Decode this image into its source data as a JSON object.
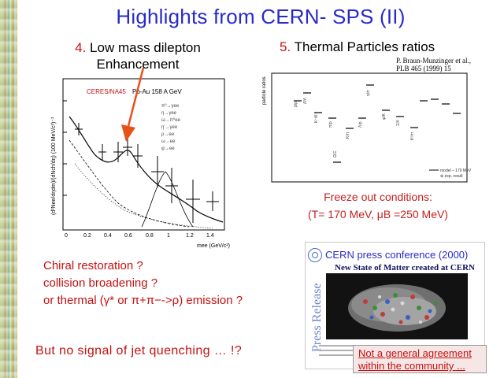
{
  "title": "Highlights from CERN- SPS (II)",
  "section4": {
    "num": "4.",
    "line1": "Low mass dilepton",
    "line2": "Enhancement"
  },
  "section5": {
    "num": "5.",
    "text": "Thermal Particles ratios"
  },
  "reference": {
    "line1": "P. Braun-Munzinger et al.,",
    "line2": "PLB 465 (1999) 15"
  },
  "dilepton_plot": {
    "experiment": "CERES/NA45",
    "system": "Pb-Au 158 A GeV",
    "ylabel": "(d²Nee/dηdm)/(dNch/dη) (100 MeV/c²)⁻¹",
    "xlabel": "mee (GeV/c²)",
    "xticks": [
      "0",
      "0.2",
      "0.4",
      "0.6",
      "0.8",
      "1",
      "1.2",
      "1.4"
    ]
  },
  "freeze": {
    "line1": "Freeze out conditions:",
    "line2": "(T= 170 MeV, μB =250 MeV)"
  },
  "chiral": {
    "line1": "Chiral restoration ?",
    "line2": "collision broadening ?",
    "line3": "or thermal (γ* or π+π−->ρ) emission ?"
  },
  "jet": "But no signal of jet quenching … !?",
  "press": {
    "side_label": "Press Release",
    "heading": "CERN press conference (2000)",
    "headline": "New State of Matter created at CERN"
  },
  "note": {
    "line1": "Not a general agreement",
    "line2": "within the community ..."
  },
  "colors": {
    "title": "#2a2acb",
    "accent_red": "#d01010",
    "arrow": "#e8501a"
  }
}
